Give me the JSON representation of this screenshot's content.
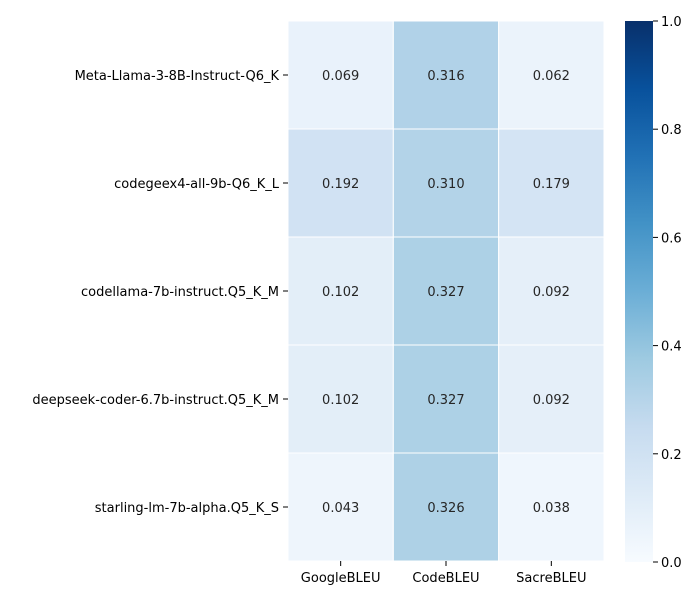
{
  "chart_data": {
    "type": "heatmap",
    "title": "",
    "xlabel": "",
    "ylabel": "",
    "rows": [
      "Meta-Llama-3-8B-Instruct-Q6_K",
      "codegeex4-all-9b-Q6_K_L",
      "codellama-7b-instruct.Q5_K_M",
      "deepseek-coder-6.7b-instruct.Q5_K_M",
      "starling-lm-7b-alpha.Q5_K_S"
    ],
    "columns": [
      "GoogleBLEU",
      "CodeBLEU",
      "SacreBLEU"
    ],
    "values": [
      [
        0.069,
        0.316,
        0.062
      ],
      [
        0.192,
        0.31,
        0.179
      ],
      [
        0.102,
        0.327,
        0.092
      ],
      [
        0.102,
        0.327,
        0.092
      ],
      [
        0.043,
        0.326,
        0.038
      ]
    ],
    "value_labels": [
      [
        "0.069",
        "0.316",
        "0.062"
      ],
      [
        "0.192",
        "0.310",
        "0.179"
      ],
      [
        "0.102",
        "0.327",
        "0.092"
      ],
      [
        "0.102",
        "0.327",
        "0.092"
      ],
      [
        "0.043",
        "0.326",
        "0.038"
      ]
    ],
    "colorbar": {
      "colormap": "Blues",
      "range": [
        0,
        1
      ],
      "ticks": [
        0.0,
        0.2,
        0.4,
        0.6,
        0.8,
        1.0
      ],
      "tick_labels": [
        "0.0",
        "0.2",
        "0.4",
        "0.6",
        "0.8",
        "1.0"
      ],
      "position": "right"
    },
    "grid": false
  }
}
